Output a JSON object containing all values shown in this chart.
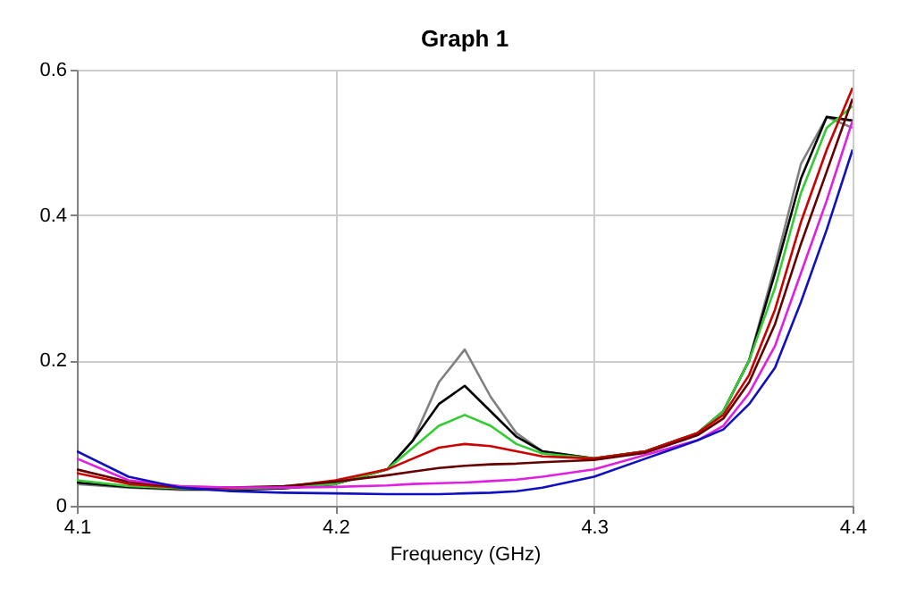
{
  "chart_data": {
    "type": "line",
    "title": "Graph 1",
    "xlabel": "Frequency (GHz)",
    "x": [
      4.1,
      4.12,
      4.14,
      4.16,
      4.18,
      4.2,
      4.22,
      4.23,
      4.24,
      4.25,
      4.26,
      4.27,
      4.28,
      4.3,
      4.32,
      4.34,
      4.35,
      4.36,
      4.37,
      4.38,
      4.39,
      4.4
    ],
    "series": [
      {
        "color": "#808080",
        "values": [
          0.03,
          0.025,
          0.022,
          0.022,
          0.024,
          0.03,
          0.05,
          0.09,
          0.17,
          0.215,
          0.15,
          0.1,
          0.075,
          0.065,
          0.075,
          0.1,
          0.13,
          0.2,
          0.33,
          0.47,
          0.535,
          0.52
        ]
      },
      {
        "color": "#000000",
        "values": [
          0.032,
          0.026,
          0.023,
          0.022,
          0.024,
          0.03,
          0.05,
          0.09,
          0.14,
          0.165,
          0.13,
          0.095,
          0.075,
          0.065,
          0.075,
          0.1,
          0.13,
          0.2,
          0.32,
          0.45,
          0.535,
          0.53
        ]
      },
      {
        "color": "#33cc33",
        "values": [
          0.035,
          0.027,
          0.024,
          0.023,
          0.025,
          0.03,
          0.05,
          0.08,
          0.11,
          0.125,
          0.11,
          0.085,
          0.072,
          0.065,
          0.075,
          0.1,
          0.13,
          0.2,
          0.3,
          0.43,
          0.52,
          0.55
        ]
      },
      {
        "color": "#cc0000",
        "values": [
          0.045,
          0.03,
          0.025,
          0.024,
          0.026,
          0.035,
          0.05,
          0.065,
          0.08,
          0.085,
          0.082,
          0.075,
          0.068,
          0.065,
          0.075,
          0.1,
          0.125,
          0.18,
          0.27,
          0.39,
          0.49,
          0.575
        ]
      },
      {
        "color": "#660000",
        "values": [
          0.05,
          0.033,
          0.026,
          0.025,
          0.027,
          0.033,
          0.042,
          0.047,
          0.052,
          0.055,
          0.057,
          0.058,
          0.06,
          0.063,
          0.073,
          0.097,
          0.12,
          0.17,
          0.25,
          0.36,
          0.46,
          0.56
        ]
      },
      {
        "color": "#e020e0",
        "values": [
          0.065,
          0.035,
          0.027,
          0.025,
          0.025,
          0.026,
          0.028,
          0.03,
          0.031,
          0.032,
          0.034,
          0.036,
          0.04,
          0.05,
          0.07,
          0.09,
          0.11,
          0.155,
          0.22,
          0.32,
          0.42,
          0.53
        ]
      },
      {
        "color": "#1010c0",
        "values": [
          0.075,
          0.04,
          0.025,
          0.02,
          0.018,
          0.017,
          0.016,
          0.016,
          0.016,
          0.017,
          0.018,
          0.02,
          0.025,
          0.04,
          0.065,
          0.09,
          0.105,
          0.14,
          0.19,
          0.28,
          0.38,
          0.49
        ]
      }
    ],
    "xlim": [
      4.1,
      4.4
    ],
    "xticks": [
      4.1,
      4.2,
      4.3,
      4.4
    ],
    "ylim": [
      0,
      0.6
    ],
    "yticks": [
      0,
      0.2,
      0.4,
      0.6
    ],
    "grid": true,
    "marker": "none",
    "line_style": "solid"
  }
}
